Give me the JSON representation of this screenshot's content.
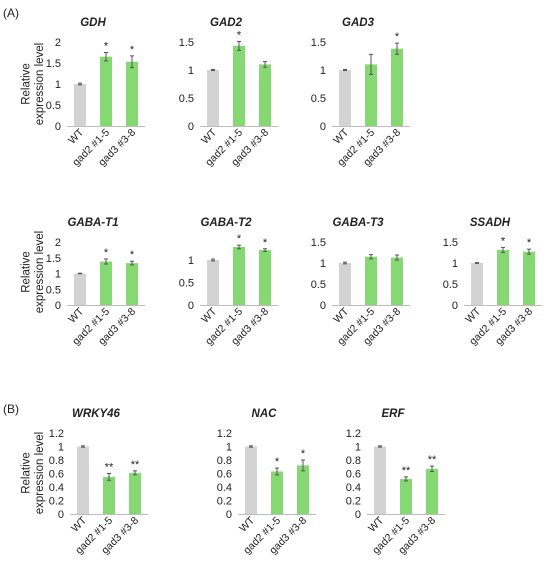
{
  "figure": {
    "panel_labels": [
      "(A)",
      "(B)"
    ],
    "y_label_line1": "Relative",
    "y_label_line2": "expression level",
    "colors": {
      "control": "#d3d3d3",
      "mutant": "#86d872",
      "errorbar": "#555555"
    }
  },
  "chart_data": [
    {
      "type": "bar",
      "title": "GDH",
      "categories": [
        "WT",
        "gad2 #1-5",
        "gad3 #3-8"
      ],
      "values": [
        1.0,
        1.65,
        1.53
      ],
      "errors": [
        0.02,
        0.1,
        0.14
      ],
      "significance": [
        "",
        "*",
        "*"
      ],
      "ylim": [
        0,
        2
      ],
      "yticks": [
        "0",
        "0.5",
        "1",
        "1.5",
        "2"
      ],
      "ylabel": "Relative expression level"
    },
    {
      "type": "bar",
      "title": "GAD2",
      "categories": [
        "WT",
        "gad2 #1-5",
        "gad3 #3-8"
      ],
      "values": [
        1.0,
        1.43,
        1.1
      ],
      "errors": [
        0.01,
        0.08,
        0.05
      ],
      "significance": [
        "",
        "*",
        ""
      ],
      "ylim": [
        0,
        1.5
      ],
      "yticks": [
        "0",
        "0.5",
        "1",
        "1.5"
      ]
    },
    {
      "type": "bar",
      "title": "GAD3",
      "categories": [
        "WT",
        "gad2 #1-5",
        "gad3 #3-8"
      ],
      "values": [
        1.0,
        1.1,
        1.38
      ],
      "errors": [
        0.01,
        0.18,
        0.1
      ],
      "significance": [
        "",
        "",
        "*"
      ],
      "ylim": [
        0,
        1.5
      ],
      "yticks": [
        "0",
        "0.5",
        "1",
        "1.5"
      ]
    },
    {
      "type": "bar",
      "title": "GABA-T1",
      "categories": [
        "WT",
        "gad2 #1-5",
        "gad3 #3-8"
      ],
      "values": [
        1.0,
        1.38,
        1.33
      ],
      "errors": [
        0.01,
        0.08,
        0.06
      ],
      "significance": [
        "",
        "*",
        "*"
      ],
      "ylim": [
        0,
        2
      ],
      "yticks": [
        "0",
        "0.5",
        "1",
        "1.5",
        "2"
      ],
      "ylabel": "Relative expression level"
    },
    {
      "type": "bar",
      "title": "GABA-T2",
      "categories": [
        "WT",
        "gad2 #1-5",
        "gad3 #3-8"
      ],
      "values": [
        1.0,
        1.29,
        1.22
      ],
      "errors": [
        0.02,
        0.04,
        0.03
      ],
      "significance": [
        "",
        "*",
        "*"
      ],
      "ylim": [
        0,
        1.4
      ],
      "yticks": [
        "0",
        "0.5",
        "1"
      ]
    },
    {
      "type": "bar",
      "title": "GABA-T3",
      "categories": [
        "WT",
        "gad2 #1-5",
        "gad3 #3-8"
      ],
      "values": [
        1.0,
        1.15,
        1.13
      ],
      "errors": [
        0.02,
        0.05,
        0.06
      ],
      "significance": [
        "",
        "",
        ""
      ],
      "ylim": [
        0,
        1.5
      ],
      "yticks": [
        "0",
        "0.5",
        "1",
        "1.5"
      ]
    },
    {
      "type": "bar",
      "title": "SSADH",
      "categories": [
        "WT",
        "gad2 #1-5",
        "gad3 #3-8"
      ],
      "values": [
        1.0,
        1.31,
        1.27
      ],
      "errors": [
        0.01,
        0.06,
        0.06
      ],
      "significance": [
        "",
        "*",
        "*"
      ],
      "ylim": [
        0,
        1.5
      ],
      "yticks": [
        "0",
        "0.5",
        "1",
        "1.5"
      ]
    },
    {
      "type": "bar",
      "title": "WRKY46",
      "categories": [
        "WT",
        "gad2 #1-5",
        "gad3 #3-8"
      ],
      "values": [
        1.0,
        0.55,
        0.61
      ],
      "errors": [
        0.01,
        0.05,
        0.03
      ],
      "significance": [
        "",
        "**",
        "**"
      ],
      "ylim": [
        0,
        1.2
      ],
      "yticks": [
        "0",
        "0.2",
        "0.4",
        "0.6",
        "0.8",
        "1",
        "1.2"
      ],
      "ylabel": "Relative expression level"
    },
    {
      "type": "bar",
      "title": "NAC",
      "categories": [
        "WT",
        "gad2 #1-5",
        "gad3 #3-8"
      ],
      "values": [
        1.0,
        0.63,
        0.72
      ],
      "errors": [
        0.01,
        0.05,
        0.08
      ],
      "significance": [
        "",
        "*",
        "*"
      ],
      "ylim": [
        0,
        1.2
      ],
      "yticks": [
        "0",
        "0.2",
        "0.4",
        "0.6",
        "0.8",
        "1",
        "1.2"
      ]
    },
    {
      "type": "bar",
      "title": "ERF",
      "categories": [
        "WT",
        "gad2 #1-5",
        "gad3 #3-8"
      ],
      "values": [
        1.0,
        0.52,
        0.67
      ],
      "errors": [
        0.01,
        0.03,
        0.04
      ],
      "significance": [
        "",
        "**",
        "**"
      ],
      "ylim": [
        0,
        1.2
      ],
      "yticks": [
        "0",
        "0.2",
        "0.4",
        "0.6",
        "0.8",
        "1",
        "1.2"
      ]
    }
  ]
}
